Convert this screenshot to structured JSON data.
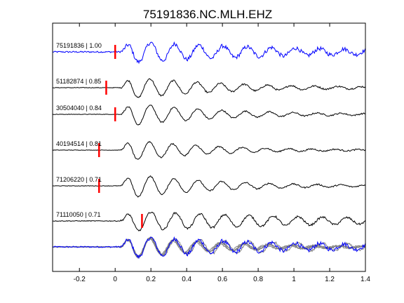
{
  "chart_data": {
    "type": "line",
    "title": "75191836.NC.MLH.EHZ",
    "xlabel": "",
    "ylabel": "",
    "xlim": [
      -0.35,
      1.4
    ],
    "x_ticks": [
      -0.2,
      0,
      0.2,
      0.4,
      0.6,
      0.8,
      1,
      1.2,
      1.4
    ],
    "x_tick_labels": [
      "-0.2",
      "0",
      "0.2",
      "0.4",
      "0.6",
      "0.8",
      "1",
      "1.2",
      "1.4"
    ],
    "grid": false,
    "colors": {
      "master": "#0000ff",
      "trace": "#000000",
      "overlay": "#808080",
      "pick": "#ff0000",
      "axes": "#000000"
    },
    "traces": [
      {
        "id": "75191836",
        "cc": "1.00",
        "label": "75191836 | 1.00",
        "pick_time": 0.0,
        "color": "#0000ff"
      },
      {
        "id": "51182874",
        "cc": "0.85",
        "label": "51182874 | 0.85",
        "pick_time": -0.05,
        "color": "#000000"
      },
      {
        "id": "30504040",
        "cc": "0.84",
        "label": "30504040 | 0.84",
        "pick_time": 0.0,
        "color": "#000000"
      },
      {
        "id": "40194514",
        "cc": "0.81",
        "label": "40194514 | 0.81",
        "pick_time": -0.09,
        "color": "#000000"
      },
      {
        "id": "71206220",
        "cc": "0.71",
        "label": "71206220 | 0.71",
        "pick_time": -0.09,
        "color": "#000000"
      },
      {
        "id": "71110050",
        "cc": "0.71",
        "label": "71110050 | 0.71",
        "pick_time": 0.15,
        "color": "#000000"
      }
    ],
    "overlay": {
      "description_color_master": "#0000ff",
      "description_color_others": "#808080"
    }
  }
}
